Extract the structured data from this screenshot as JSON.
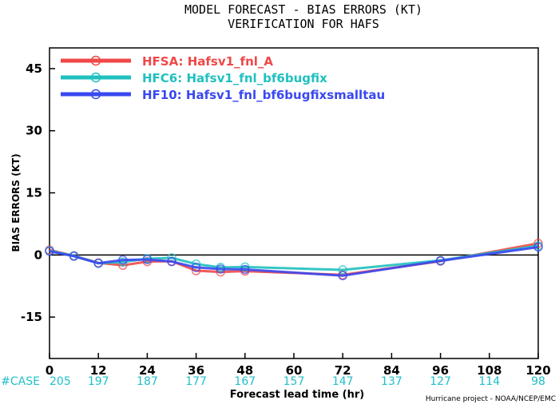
{
  "chart_data": {
    "type": "line",
    "title": "MODEL FORECAST - BIAS ERRORS (KT)",
    "subtitle": "VERIFICATION FOR HAFS",
    "xlabel": "Forecast lead time (hr)",
    "ylabel": "BIAS ERRORS (KT)",
    "xlim": [
      0,
      120
    ],
    "ylim": [
      -25,
      50
    ],
    "xticks": [
      0,
      12,
      24,
      36,
      48,
      60,
      72,
      84,
      96,
      108,
      120
    ],
    "yticks": [
      -15,
      0,
      15,
      30,
      45
    ],
    "zero_line": 0,
    "legend_position": "top-left",
    "case_label": "#CASE",
    "case_counts": [
      {
        "x": 0,
        "n": "205"
      },
      {
        "x": 12,
        "n": "197"
      },
      {
        "x": 24,
        "n": "187"
      },
      {
        "x": 36,
        "n": "177"
      },
      {
        "x": 48,
        "n": "167"
      },
      {
        "x": 60,
        "n": "157"
      },
      {
        "x": 72,
        "n": "147"
      },
      {
        "x": 84,
        "n": "137"
      },
      {
        "x": 96,
        "n": "127"
      },
      {
        "x": 108,
        "n": "114"
      },
      {
        "x": 120,
        "n": "98"
      }
    ],
    "series": [
      {
        "name": "HFSA: Hafsv1_fnl_A",
        "color": "#f04848",
        "x": [
          0,
          6,
          12,
          18,
          24,
          30,
          36,
          42,
          48,
          72,
          96,
          120
        ],
        "y": [
          1.2,
          -0.2,
          -1.9,
          -2.5,
          -1.6,
          -1.5,
          -3.8,
          -4.1,
          -3.9,
          -4.8,
          -1.5,
          2.8
        ]
      },
      {
        "name": "HFC6: Hafsv1_fnl_bf6bugfix",
        "color": "#20c0c0",
        "x": [
          0,
          6,
          12,
          18,
          24,
          30,
          36,
          42,
          48,
          72,
          96,
          120
        ],
        "y": [
          1.0,
          -0.2,
          -2.0,
          -1.7,
          -0.9,
          -0.7,
          -2.2,
          -3.0,
          -2.9,
          -3.6,
          -1.3,
          2.2
        ]
      },
      {
        "name": "HF10: Hafsv1_fnl_bf6bugfixsmalltau",
        "color": "#3a48f0",
        "x": [
          0,
          6,
          12,
          18,
          24,
          30,
          36,
          42,
          48,
          72,
          96,
          120
        ],
        "y": [
          0.9,
          -0.3,
          -2.0,
          -1.2,
          -1.1,
          -1.6,
          -3.0,
          -3.4,
          -3.5,
          -5.0,
          -1.4,
          1.9
        ]
      }
    ]
  },
  "footer": {
    "credit": "Hurricane project - NOAA/NCEP/EMC"
  }
}
